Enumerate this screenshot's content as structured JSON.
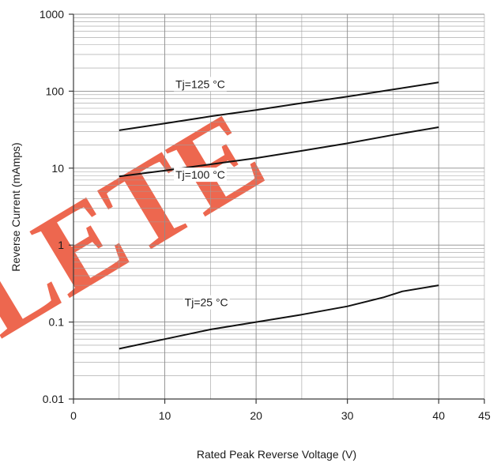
{
  "chart_data": {
    "type": "line",
    "title": "",
    "xlabel": "Rated Peak Reverse Voltage (V)",
    "ylabel": "Reverse Current (mAmps)",
    "xlim": [
      0,
      45
    ],
    "ylim": [
      0.01,
      1000
    ],
    "yscale": "log",
    "grid": true,
    "x_ticks": [
      "0",
      "10",
      "20",
      "30",
      "40",
      "45"
    ],
    "y_ticks": [
      "0.01",
      "0.1",
      "1",
      "10",
      "100",
      "1000"
    ],
    "series": [
      {
        "name": "Tj=125 °C",
        "x": [
          5,
          10,
          15,
          20,
          25,
          30,
          35,
          40
        ],
        "y": [
          31,
          38,
          47,
          57,
          70,
          85,
          105,
          130
        ]
      },
      {
        "name": "Tj=100 °C",
        "x": [
          5,
          10,
          15,
          20,
          25,
          30,
          35,
          40
        ],
        "y": [
          7.8,
          9.3,
          11.2,
          13.5,
          16.8,
          21,
          27,
          34
        ]
      },
      {
        "name": "Tj=25 °C",
        "x": [
          5,
          10,
          15,
          20,
          25,
          30,
          34,
          36,
          40
        ],
        "y": [
          0.045,
          0.06,
          0.08,
          0.1,
          0.125,
          0.16,
          0.21,
          0.25,
          0.3
        ]
      }
    ]
  },
  "watermark_color": "#e8391a"
}
